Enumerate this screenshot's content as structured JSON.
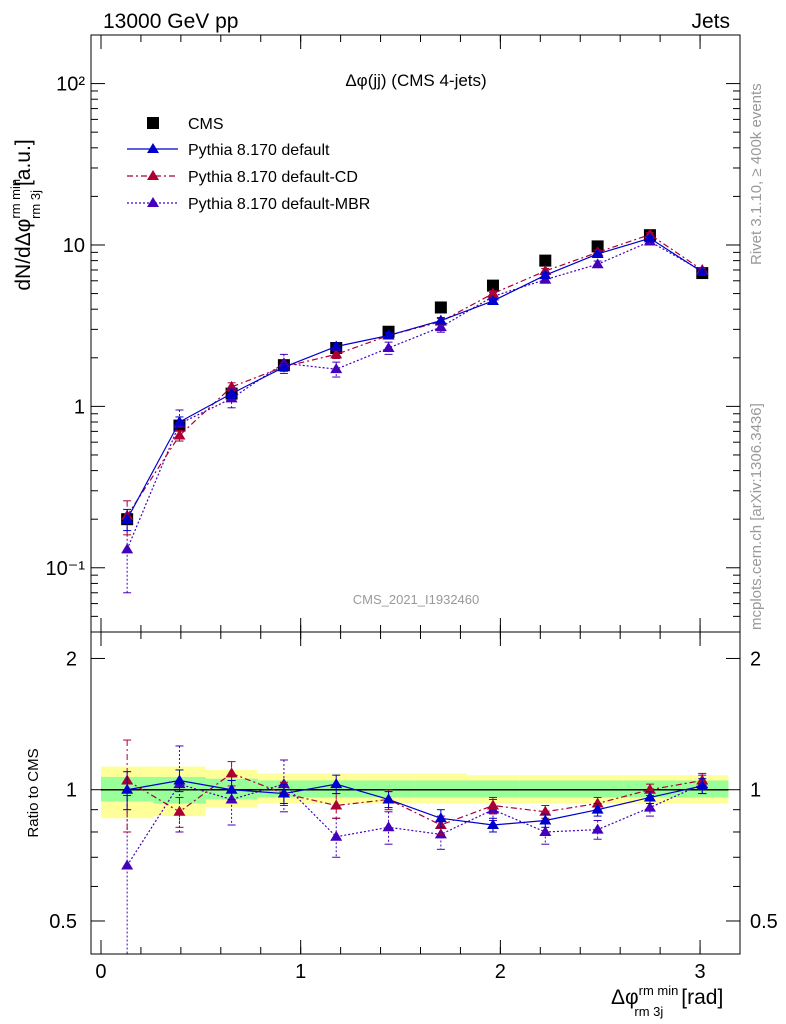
{
  "header": {
    "energy_label": "13000 GeV pp",
    "category_label": "Jets"
  },
  "side": {
    "rivet": "Rivet 3.1.10, ≥ 400k events",
    "mcplots": "mcplots.cern.ch [arXiv:1306.3436]"
  },
  "chart_data": [
    {
      "type": "scatter",
      "panel": "main",
      "title": "Δφ(jj) (CMS 4-jets)",
      "ylabel": "dN/dΔφrm minrm 3j [a.u.]",
      "ylabel_parts": {
        "base": "dN/dΔφ",
        "sup": "rm min",
        "sub": "rm 3j",
        "unit": "[a.u.]"
      },
      "watermark": "CMS_2021_I1932460",
      "yscale": "log",
      "ylim": [
        0.04,
        200
      ],
      "xlim": [
        -0.05,
        3.2
      ],
      "y_tick_labels": [
        "10⁻¹",
        "1",
        "10",
        "10²"
      ],
      "x": [
        0.131,
        0.393,
        0.654,
        0.916,
        1.178,
        1.44,
        1.702,
        1.963,
        2.225,
        2.487,
        2.749,
        3.011
      ],
      "series": [
        {
          "name": "CMS",
          "style": "marker",
          "color": "#000000",
          "values": [
            0.2,
            0.76,
            1.2,
            1.8,
            2.3,
            2.9,
            4.1,
            5.6,
            8.0,
            9.8,
            11.5,
            6.7
          ]
        },
        {
          "name": "Pythia 8.170 default",
          "style": "solid",
          "color": "#0000cc",
          "values": [
            0.2,
            0.8,
            1.2,
            1.75,
            2.35,
            2.75,
            3.4,
            4.5,
            6.5,
            8.8,
            11.0,
            6.8
          ],
          "errors": [
            0.03,
            0.06,
            0.08,
            0.1,
            0.12,
            0.12,
            0.15,
            0.18,
            0.22,
            0.28,
            0.3,
            0.22
          ]
        },
        {
          "name": "Pythia 8.170 default-CD",
          "style": "dashdot",
          "color": "#aa0033",
          "values": [
            0.21,
            0.66,
            1.32,
            1.76,
            2.1,
            2.75,
            3.35,
            5.0,
            6.9,
            9.0,
            11.6,
            7.0
          ],
          "errors": [
            0.05,
            0.05,
            0.08,
            0.1,
            0.12,
            0.12,
            0.15,
            0.2,
            0.25,
            0.3,
            0.32,
            0.24
          ]
        },
        {
          "name": "Pythia 8.170 default-MBR",
          "style": "dotted",
          "color": "#4400bb",
          "values": [
            0.13,
            0.78,
            1.12,
            1.85,
            1.7,
            2.3,
            3.1,
            4.8,
            6.1,
            7.6,
            10.5,
            6.9
          ],
          "errors": [
            0.06,
            0.17,
            0.14,
            0.25,
            0.18,
            0.2,
            0.22,
            0.28,
            0.3,
            0.35,
            0.38,
            0.3
          ]
        }
      ]
    },
    {
      "type": "scatter",
      "panel": "ratio",
      "ylabel": "Ratio to CMS",
      "xlabel": "Δφrm minrm 3j [rad]",
      "xlabel_parts": {
        "base": "Δφ",
        "sup": "rm min",
        "sub": "rm 3j",
        "unit": "[rad]"
      },
      "yscale": "log",
      "ylim": [
        0.42,
        2.3
      ],
      "xlim": [
        -0.05,
        3.2
      ],
      "y_ticks": [
        0.5,
        1,
        2
      ],
      "y_tick_labels": [
        "0.5",
        "1",
        "2"
      ],
      "x_ticks": [
        0,
        1,
        2,
        3
      ],
      "x_tick_labels": [
        "0",
        "1",
        "2",
        "3"
      ],
      "band_edges": [
        0,
        0.262,
        0.524,
        0.785,
        1.047,
        1.309,
        1.571,
        1.833,
        2.094,
        2.356,
        2.618,
        2.88,
        3.142
      ],
      "band_inner": [
        [
          0.94,
          1.07
        ],
        [
          0.93,
          1.07
        ],
        [
          0.95,
          1.06
        ],
        [
          0.96,
          1.05
        ],
        [
          0.96,
          1.05
        ],
        [
          0.96,
          1.05
        ],
        [
          0.96,
          1.05
        ],
        [
          0.96,
          1.05
        ],
        [
          0.96,
          1.05
        ],
        [
          0.96,
          1.05
        ],
        [
          0.96,
          1.05
        ],
        [
          0.96,
          1.05
        ]
      ],
      "band_outer": [
        [
          0.86,
          1.13
        ],
        [
          0.87,
          1.13
        ],
        [
          0.91,
          1.11
        ],
        [
          0.93,
          1.09
        ],
        [
          0.93,
          1.09
        ],
        [
          0.93,
          1.09
        ],
        [
          0.93,
          1.09
        ],
        [
          0.93,
          1.08
        ],
        [
          0.93,
          1.08
        ],
        [
          0.93,
          1.08
        ],
        [
          0.93,
          1.08
        ],
        [
          0.93,
          1.08
        ]
      ],
      "colors": {
        "inner_band": "#99ff99",
        "outer_band": "#ffff99",
        "reference_line": "#000000"
      },
      "series": [
        {
          "name": "Pythia 8.170 default",
          "style": "solid",
          "color": "#0000cc",
          "values": [
            1.0,
            1.05,
            1.0,
            0.98,
            1.03,
            0.95,
            0.86,
            0.83,
            0.85,
            0.9,
            0.96,
            1.02
          ],
          "errors": [
            0.1,
            0.06,
            0.05,
            0.05,
            0.05,
            0.04,
            0.04,
            0.03,
            0.03,
            0.03,
            0.03,
            0.04
          ]
        },
        {
          "name": "Pythia 8.170 default-CD",
          "style": "dashdot",
          "color": "#aa0033",
          "values": [
            1.05,
            0.89,
            1.09,
            0.98,
            0.92,
            0.95,
            0.83,
            0.92,
            0.89,
            0.93,
            1.0,
            1.05
          ],
          "errors": [
            0.25,
            0.07,
            0.07,
            0.06,
            0.06,
            0.05,
            0.04,
            0.04,
            0.03,
            0.03,
            0.03,
            0.04
          ]
        },
        {
          "name": "Pythia 8.170 default-MBR",
          "style": "dotted",
          "color": "#4400bb",
          "values": [
            0.67,
            1.03,
            0.95,
            1.03,
            0.78,
            0.82,
            0.79,
            0.9,
            0.8,
            0.81,
            0.91,
            1.03
          ],
          "errors": [
            0.3,
            0.23,
            0.12,
            0.14,
            0.08,
            0.07,
            0.06,
            0.05,
            0.05,
            0.04,
            0.04,
            0.05
          ]
        }
      ]
    }
  ]
}
